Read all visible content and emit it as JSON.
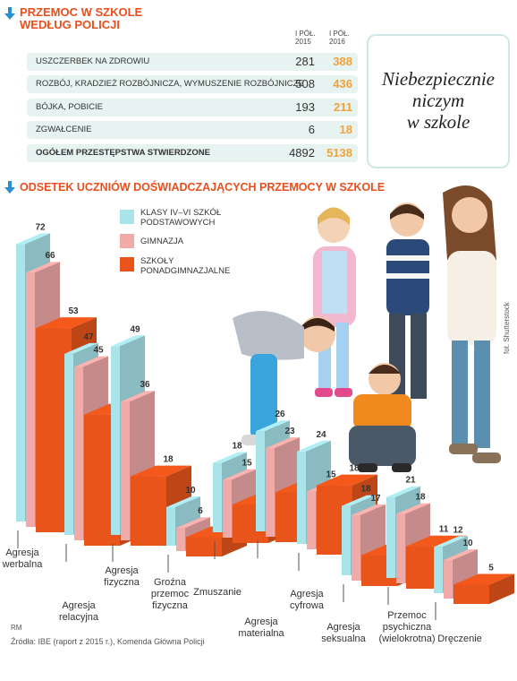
{
  "police": {
    "title_line1": "PRZEMOC W SZKOLE",
    "title_line2": "WEDŁUG POLICJI",
    "col_2015": [
      "I PÓŁ.",
      "2015"
    ],
    "col_2016": [
      "I PÓŁ.",
      "2016"
    ],
    "rows": [
      {
        "label": "USZCZERBEK NA ZDROWIU",
        "v2015": "281",
        "v2016": "388"
      },
      {
        "label": "ROZBÓJ, KRADZIEŻ ROZBÓJNICZA, WYMUSZENIE ROZBÓJNICZE",
        "v2015": "508",
        "v2016": "436"
      },
      {
        "label": "BÓJKA, POBICIE",
        "v2015": "193",
        "v2016": "211"
      },
      {
        "label": "ZGWAŁCENIE",
        "v2015": "6",
        "v2016": "18"
      },
      {
        "label": "OGÓŁEM PRZESTĘPSTWA STWIERDZONE",
        "v2015": "4892",
        "v2016": "5138"
      }
    ]
  },
  "quote": [
    "Niebezpiecznie",
    "niczym",
    "w szkole"
  ],
  "chart_title": "ODSETEK UCZNIÓW DOŚWIADCZAJĄCYCH PRZEMOCY W SZKOLE",
  "chart_data": {
    "type": "bar",
    "categories": [
      "Agresja werbalna",
      "Agresja relacyjna",
      "Agresja fizyczna",
      "Groźna przemoc fizyczna",
      "Zmuszanie",
      "Agresja materialna",
      "Agresja cyfrowa",
      "Agresja seksualna",
      "Przemoc psychiczna (wielokrotna)",
      "Dręczenie"
    ],
    "category_lines": [
      [
        "Agresja",
        "werbalna"
      ],
      [
        "Agresja",
        "relacyjna"
      ],
      [
        "Agresja",
        "fizyczna"
      ],
      [
        "Groźna",
        "przemoc",
        "fizyczna"
      ],
      [
        "Zmuszanie"
      ],
      [
        "Agresja",
        "materialna"
      ],
      [
        "Agresja",
        "cyfrowa"
      ],
      [
        "Agresja",
        "seksualna"
      ],
      [
        "Przemoc",
        "psychiczna",
        "(wielokrotna)"
      ],
      [
        "Dręczenie"
      ]
    ],
    "series": [
      {
        "name": "KLASY IV–VI SZKÓŁ PODSTAWOWYCH",
        "values": [
          72,
          47,
          49,
          10,
          18,
          26,
          24,
          18,
          21,
          12
        ]
      },
      {
        "name": "GIMNAZJA",
        "values": [
          66,
          45,
          36,
          6,
          15,
          23,
          15,
          17,
          18,
          10
        ]
      },
      {
        "name": "SZKOŁY PONADGIMNAZJALNE",
        "values": [
          53,
          34,
          18,
          5,
          10,
          13,
          18,
          8,
          11,
          5
        ]
      }
    ],
    "colors": [
      "#a8e4ea",
      "#f0aaa8",
      "#e8541a"
    ],
    "legend_lines": [
      [
        "KLASY IV–VI SZKÓŁ",
        "PODSTAWOWYCH"
      ],
      [
        "GIMNAZJA"
      ],
      [
        "SZKOŁY",
        "PONADGIMNAZJALNE"
      ]
    ]
  },
  "photo_credit": "fot. Shutterstock",
  "author": "RM",
  "source": "Źródła: IBE (raport z 2015 r.), Komenda Główna Policji"
}
